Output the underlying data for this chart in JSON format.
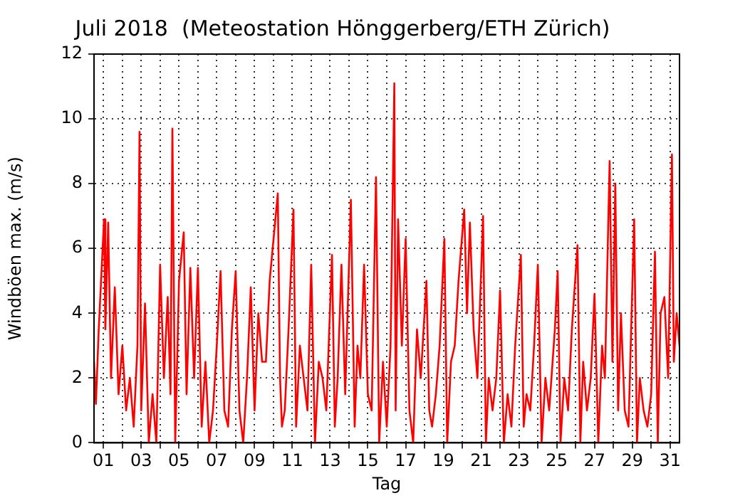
{
  "chart_data": {
    "type": "line",
    "title": "Juli 2018  (Meteostation Hönggerberg/ETH Zürich)",
    "xlabel": "Tag",
    "ylabel": "Windböen max. (m/s)",
    "x": [
      1.0,
      1.1,
      1.25,
      1.53,
      1.6,
      1.75,
      1.9,
      2.1,
      2.3,
      2.5,
      2.7,
      2.9,
      3.1,
      3.3,
      3.41,
      3.5,
      3.7,
      3.9,
      4.1,
      4.3,
      4.5,
      4.7,
      4.9,
      5.05,
      5.15,
      5.3,
      5.5,
      5.75,
      5.9,
      6.1,
      6.3,
      6.5,
      6.7,
      6.9,
      7.1,
      7.3,
      7.5,
      7.7,
      7.9,
      8.1,
      8.3,
      8.5,
      8.7,
      8.9,
      9.1,
      9.3,
      9.5,
      9.7,
      9.9,
      10.1,
      10.3,
      10.73,
      10.85,
      10.95,
      11.1,
      11.3,
      11.56,
      11.7,
      11.9,
      12.1,
      12.3,
      12.5,
      12.7,
      12.9,
      13.1,
      13.3,
      13.6,
      13.75,
      13.9,
      14.1,
      14.3,
      14.6,
      14.8,
      14.95,
      15.1,
      15.3,
      15.5,
      15.7,
      15.93,
      16.1,
      16.3,
      16.5,
      16.7,
      16.9,
      16.97,
      17.1,
      17.3,
      17.5,
      17.7,
      17.9,
      18.1,
      18.3,
      18.6,
      18.75,
      18.9,
      19.1,
      19.3,
      19.55,
      19.7,
      19.9,
      20.1,
      20.3,
      20.6,
      20.75,
      20.9,
      21.1,
      21.3,
      21.6,
      21.75,
      21.9,
      22.1,
      22.3,
      22.5,
      22.7,
      22.9,
      23.1,
      23.3,
      23.6,
      23.75,
      23.9,
      24.1,
      24.3,
      24.5,
      24.7,
      24.9,
      25.1,
      25.4,
      25.55,
      25.7,
      25.9,
      26.1,
      26.3,
      26.6,
      26.75,
      26.9,
      27.1,
      27.3,
      27.5,
      27.7,
      27.9,
      28.05,
      28.3,
      28.45,
      28.6,
      28.75,
      28.9,
      29.1,
      29.3,
      29.6,
      29.75,
      29.9,
      30.1,
      30.3,
      30.5,
      30.7,
      30.85,
      31.0,
      31.2,
      31.4,
      31.6,
      31.7,
      31.85,
      32.0
    ],
    "series": [
      {
        "color": "#ff0000",
        "values": [
          2.5,
          1.2,
          3.5,
          6.9,
          3.5,
          6.8,
          2.0,
          4.8,
          1.5,
          3.0,
          1.0,
          2.0,
          0.5,
          3.0,
          9.6,
          1.0,
          4.3,
          0,
          1.5,
          0,
          5.5,
          2.0,
          4.5,
          1.5,
          9.7,
          0,
          5.0,
          6.5,
          1.5,
          5.4,
          2.0,
          5.4,
          0.5,
          2.5,
          0,
          1.0,
          3.0,
          5.3,
          1.0,
          0.5,
          3.5,
          5.3,
          1.0,
          0,
          2.0,
          4.8,
          1.0,
          4.0,
          2.5,
          2.5,
          5.0,
          7.7,
          2.0,
          0.5,
          1.0,
          3.5,
          7.2,
          0.5,
          3.0,
          2.0,
          1.0,
          5.5,
          0,
          2.5,
          2.0,
          1.0,
          5.8,
          0.5,
          2.0,
          5.5,
          1.5,
          7.5,
          0.5,
          3.0,
          2.0,
          5.5,
          1.5,
          1.0,
          8.2,
          0,
          2.5,
          0.5,
          3.0,
          11.1,
          1.0,
          6.9,
          3.0,
          6.3,
          1.0,
          0,
          3.5,
          2.0,
          5.0,
          1.0,
          0.5,
          1.5,
          3.0,
          6.3,
          0,
          2.5,
          3.0,
          5.0,
          7.2,
          4.0,
          6.8,
          3.5,
          2.0,
          7.0,
          0,
          2.0,
          1.0,
          2.0,
          4.7,
          0,
          1.5,
          0.5,
          3.0,
          5.8,
          0.5,
          1.5,
          1.0,
          3.0,
          5.5,
          0,
          2.0,
          1.0,
          3.5,
          5.3,
          0,
          2.0,
          1.0,
          3.5,
          6.1,
          0,
          2.5,
          1.0,
          2.0,
          4.6,
          0,
          3.0,
          2.0,
          8.7,
          2.5,
          8.0,
          1.0,
          4.0,
          1.0,
          0.5,
          6.9,
          0,
          2.0,
          1.0,
          0.5,
          1.5,
          5.9,
          0,
          4.0,
          4.5,
          2.0,
          8.9,
          2.5,
          4.0,
          3.0
        ]
      }
    ],
    "xlim": [
      1,
      32
    ],
    "ylim": [
      0,
      12
    ],
    "xticks": [
      {
        "value": 1.5,
        "label": "01"
      },
      {
        "value": 2.5,
        "label": null
      },
      {
        "value": 3.5,
        "label": "03"
      },
      {
        "value": 4.5,
        "label": null
      },
      {
        "value": 5.5,
        "label": "05"
      },
      {
        "value": 6.5,
        "label": null
      },
      {
        "value": 7.5,
        "label": "07"
      },
      {
        "value": 8.5,
        "label": null
      },
      {
        "value": 9.5,
        "label": "09"
      },
      {
        "value": 10.5,
        "label": null
      },
      {
        "value": 11.5,
        "label": "11"
      },
      {
        "value": 12.5,
        "label": null
      },
      {
        "value": 13.5,
        "label": "13"
      },
      {
        "value": 14.5,
        "label": null
      },
      {
        "value": 15.5,
        "label": "15"
      },
      {
        "value": 16.5,
        "label": null
      },
      {
        "value": 17.5,
        "label": "17"
      },
      {
        "value": 18.5,
        "label": null
      },
      {
        "value": 19.5,
        "label": "19"
      },
      {
        "value": 20.5,
        "label": null
      },
      {
        "value": 21.5,
        "label": "21"
      },
      {
        "value": 22.5,
        "label": null
      },
      {
        "value": 23.5,
        "label": "23"
      },
      {
        "value": 24.5,
        "label": null
      },
      {
        "value": 25.5,
        "label": "25"
      },
      {
        "value": 26.5,
        "label": null
      },
      {
        "value": 27.5,
        "label": "27"
      },
      {
        "value": 28.5,
        "label": null
      },
      {
        "value": 29.5,
        "label": "29"
      },
      {
        "value": 30.5,
        "label": null
      },
      {
        "value": 31.5,
        "label": "31"
      }
    ],
    "yticks": [
      0,
      2,
      4,
      6,
      8,
      10,
      12
    ],
    "grid": true
  }
}
